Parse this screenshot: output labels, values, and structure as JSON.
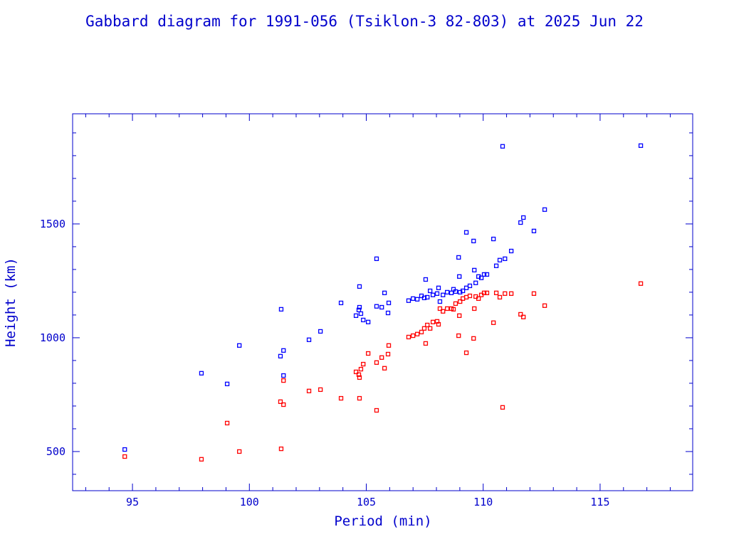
{
  "chart_data": {
    "type": "scatter",
    "title": "Gabbard diagram for 1991-056 (Tsiklon-3 82-803) at 2025 Jun 22",
    "x_label": "Period (min)",
    "y_label": "Height (km)",
    "xlim": [
      92.44,
      118.96
    ],
    "ylim": [
      328,
      1984
    ],
    "xticks": [
      95,
      100,
      105,
      110,
      115
    ],
    "yticks": [
      500,
      1000,
      1500
    ],
    "xminorticks": [
      93,
      94,
      96,
      97,
      98,
      99,
      101,
      102,
      103,
      104,
      106,
      107,
      108,
      109,
      111,
      112,
      113,
      114,
      116,
      117,
      118
    ],
    "yminorticks": [
      400,
      600,
      700,
      800,
      900,
      1100,
      1200,
      1300,
      1400,
      1600,
      1700,
      1800,
      1900
    ],
    "series": [
      {
        "color": "#0000ff",
        "x": [
          94.67,
          97.95,
          99.05,
          99.57,
          101.36,
          101.33,
          101.46,
          101.46,
          102.55,
          103.04,
          103.92,
          104.56,
          104.71,
          104.71,
          104.68,
          104.77,
          104.87,
          105.08,
          105.44,
          105.44,
          105.66,
          105.78,
          105.93,
          105.96,
          106.81,
          107.0,
          107.18,
          107.36,
          107.48,
          107.54,
          107.61,
          107.73,
          107.85,
          108.03,
          108.09,
          108.15,
          108.28,
          108.46,
          108.64,
          108.73,
          108.82,
          108.95,
          108.98,
          109.01,
          109.13,
          109.28,
          109.28,
          109.43,
          109.59,
          109.62,
          109.68,
          109.8,
          109.92,
          110.04,
          110.16,
          110.44,
          110.56,
          110.71,
          110.83,
          110.93,
          111.2,
          111.6,
          111.72,
          112.17,
          112.63,
          116.74
        ],
        "values": [
          509,
          844,
          797,
          966,
          1125,
          919,
          944,
          834,
          991,
          1028,
          1153,
          1097,
          1225,
          1134,
          1122,
          1106,
          1078,
          1069,
          1347,
          1138,
          1134,
          1197,
          1109,
          1153,
          1163,
          1172,
          1169,
          1184,
          1175,
          1256,
          1178,
          1206,
          1188,
          1194,
          1219,
          1159,
          1188,
          1200,
          1197,
          1213,
          1203,
          1353,
          1269,
          1200,
          1206,
          1463,
          1219,
          1228,
          1425,
          1297,
          1241,
          1269,
          1263,
          1278,
          1278,
          1434,
          1316,
          1341,
          1841,
          1347,
          1381,
          1506,
          1528,
          1469,
          1563,
          1844
        ]
      },
      {
        "color": "#ff0000",
        "x": [
          94.67,
          97.95,
          99.05,
          99.57,
          101.36,
          101.33,
          101.46,
          101.46,
          102.55,
          103.04,
          103.92,
          104.56,
          104.71,
          104.71,
          104.68,
          104.77,
          104.87,
          105.08,
          105.44,
          105.44,
          105.66,
          105.78,
          105.93,
          105.96,
          106.81,
          107.0,
          107.18,
          107.36,
          107.48,
          107.54,
          107.61,
          107.73,
          107.85,
          108.03,
          108.09,
          108.15,
          108.28,
          108.46,
          108.64,
          108.73,
          108.82,
          108.95,
          108.98,
          109.01,
          109.13,
          109.28,
          109.28,
          109.43,
          109.59,
          109.62,
          109.68,
          109.8,
          109.92,
          110.04,
          110.16,
          110.44,
          110.56,
          110.71,
          110.83,
          110.93,
          111.2,
          111.6,
          111.72,
          112.17,
          112.63,
          116.74
        ],
        "values": [
          478,
          466,
          625,
          500,
          512,
          719,
          706,
          812,
          766,
          772,
          734,
          850,
          734,
          825,
          838,
          862,
          884,
          931,
          681,
          891,
          913,
          866,
          928,
          966,
          1003,
          1009,
          1016,
          1025,
          1041,
          975,
          1056,
          1041,
          1069,
          1072,
          1059,
          1128,
          1116,
          1128,
          1128,
          1125,
          1150,
          1009,
          1097,
          1159,
          1172,
          934,
          1178,
          1184,
          997,
          1128,
          1181,
          1172,
          1188,
          1197,
          1197,
          1066,
          1197,
          1178,
          694,
          1194,
          1194,
          1103,
          1091,
          1194,
          1141,
          1238
        ]
      }
    ]
  }
}
